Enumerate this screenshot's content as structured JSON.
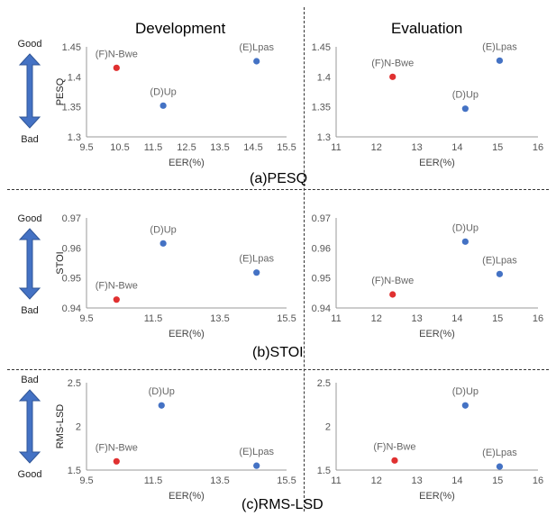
{
  "columns": {
    "left": "Development",
    "right": "Evaluation"
  },
  "captions": [
    "(a)PESQ",
    "(b)STOI",
    "(c)RMS-LSD"
  ],
  "quality_labels": {
    "good": "Good",
    "bad": "Bad"
  },
  "colors": {
    "blue": "#4472C4",
    "red": "#E03030",
    "arrow": "#4472C4"
  },
  "chart_data": [
    {
      "type": "scatter",
      "metric": "PESQ",
      "column": "Development",
      "xlabel": "EER(%)",
      "ylabel": "PESQ",
      "xlim": [
        9.5,
        15.5
      ],
      "ylim": [
        1.3,
        1.45
      ],
      "xticks": [
        "9.5",
        "10.5",
        "11.5",
        "12.5",
        "13.5",
        "14.5",
        "15.5"
      ],
      "yticks": [
        "1.3",
        "1.35",
        "1.4",
        "1.45"
      ],
      "points": [
        {
          "label": "(F)N-Bwe",
          "x": 10.4,
          "y": 1.415,
          "color": "red"
        },
        {
          "label": "(D)Up",
          "x": 11.8,
          "y": 1.352,
          "color": "blue"
        },
        {
          "label": "(E)Lpas",
          "x": 14.6,
          "y": 1.426,
          "color": "blue"
        }
      ]
    },
    {
      "type": "scatter",
      "metric": "PESQ",
      "column": "Evaluation",
      "xlabel": "EER(%)",
      "ylabel": "",
      "xlim": [
        11,
        16
      ],
      "ylim": [
        1.3,
        1.45
      ],
      "xticks": [
        "11",
        "12",
        "13",
        "14",
        "15",
        "16"
      ],
      "yticks": [
        "1.3",
        "1.35",
        "1.4",
        "1.45"
      ],
      "points": [
        {
          "label": "(F)N-Bwe",
          "x": 12.4,
          "y": 1.4,
          "color": "red"
        },
        {
          "label": "(D)Up",
          "x": 14.2,
          "y": 1.347,
          "color": "blue"
        },
        {
          "label": "(E)Lpas",
          "x": 15.05,
          "y": 1.427,
          "color": "blue"
        }
      ]
    },
    {
      "type": "scatter",
      "metric": "STOI",
      "column": "Development",
      "xlabel": "EER(%)",
      "ylabel": "STOI",
      "xlim": [
        9.5,
        15.5
      ],
      "ylim": [
        0.94,
        0.97
      ],
      "xticks": [
        "9.5",
        "11.5",
        "13.5",
        "15.5"
      ],
      "yticks": [
        "0.94",
        "0.95",
        "0.96",
        "0.97"
      ],
      "points": [
        {
          "label": "(F)N-Bwe",
          "x": 10.4,
          "y": 0.9428,
          "color": "red"
        },
        {
          "label": "(D)Up",
          "x": 11.8,
          "y": 0.9615,
          "color": "blue"
        },
        {
          "label": "(E)Lpas",
          "x": 14.6,
          "y": 0.9518,
          "color": "blue"
        }
      ]
    },
    {
      "type": "scatter",
      "metric": "STOI",
      "column": "Evaluation",
      "xlabel": "EER(%)",
      "ylabel": "",
      "xlim": [
        11,
        16
      ],
      "ylim": [
        0.94,
        0.97
      ],
      "xticks": [
        "11",
        "12",
        "13",
        "14",
        "15",
        "16"
      ],
      "yticks": [
        "0.94",
        "0.95",
        "0.96",
        "0.97"
      ],
      "points": [
        {
          "label": "(F)N-Bwe",
          "x": 12.4,
          "y": 0.9445,
          "color": "red"
        },
        {
          "label": "(D)Up",
          "x": 14.2,
          "y": 0.9621,
          "color": "blue"
        },
        {
          "label": "(E)Lpas",
          "x": 15.05,
          "y": 0.9513,
          "color": "blue"
        }
      ]
    },
    {
      "type": "scatter",
      "metric": "RMS-LSD",
      "column": "Development",
      "xlabel": "EER(%)",
      "ylabel": "RMS-LSD",
      "xlim": [
        9.5,
        15.5
      ],
      "ylim": [
        1.5,
        2.5
      ],
      "xticks": [
        "9.5",
        "11.5",
        "13.5",
        "15.5"
      ],
      "yticks": [
        "1.5",
        "2",
        "2.5"
      ],
      "points": [
        {
          "label": "(F)N-Bwe",
          "x": 10.4,
          "y": 1.6,
          "color": "red"
        },
        {
          "label": "(D)Up",
          "x": 11.75,
          "y": 2.24,
          "color": "blue"
        },
        {
          "label": "(E)Lpas",
          "x": 14.6,
          "y": 1.55,
          "color": "blue"
        }
      ]
    },
    {
      "type": "scatter",
      "metric": "RMS-LSD",
      "column": "Evaluation",
      "xlabel": "EER(%)",
      "ylabel": "",
      "xlim": [
        11,
        16
      ],
      "ylim": [
        1.5,
        2.5
      ],
      "xticks": [
        "11",
        "12",
        "13",
        "14",
        "15",
        "16"
      ],
      "yticks": [
        "1.5",
        "2",
        "2.5"
      ],
      "points": [
        {
          "label": "(F)N-Bwe",
          "x": 12.45,
          "y": 1.61,
          "color": "red"
        },
        {
          "label": "(D)Up",
          "x": 14.2,
          "y": 2.24,
          "color": "blue"
        },
        {
          "label": "(E)Lpas",
          "x": 15.05,
          "y": 1.54,
          "color": "blue"
        }
      ]
    }
  ]
}
